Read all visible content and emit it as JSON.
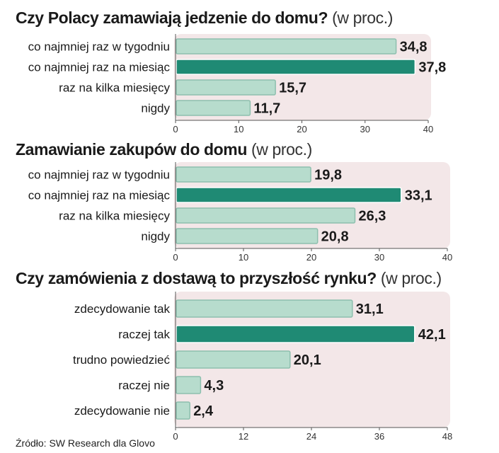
{
  "chart_data": [
    {
      "type": "bar",
      "orientation": "horizontal",
      "title": "Czy Polacy zamawiają jedzenie do domu?",
      "unit": "(w proc.)",
      "categories": [
        "co najmniej raz w tygodniu",
        "co najmniej raz na miesiąc",
        "raz na kilka miesięcy",
        "nigdy"
      ],
      "values": [
        34.8,
        37.8,
        15.7,
        11.7
      ],
      "value_labels": [
        "34,8",
        "37,8",
        "15,7",
        "11,7"
      ],
      "highlight_index": 1,
      "xlim": [
        0,
        40
      ],
      "ticks": [
        0,
        10,
        20,
        30,
        40
      ]
    },
    {
      "type": "bar",
      "orientation": "horizontal",
      "title": "Zamawianie zakupów do domu",
      "unit": "(w proc.)",
      "categories": [
        "co najmniej raz w tygodniu",
        "co najmniej raz na miesiąc",
        "raz na kilka miesięcy",
        "nigdy"
      ],
      "values": [
        19.8,
        33.1,
        26.3,
        20.8
      ],
      "value_labels": [
        "19,8",
        "33,1",
        "26,3",
        "20,8"
      ],
      "highlight_index": 1,
      "xlim": [
        0,
        40
      ],
      "ticks": [
        0,
        10,
        20,
        30,
        40
      ]
    },
    {
      "type": "bar",
      "orientation": "horizontal",
      "title": "Czy zamówienia z dostawą to przyszłość rynku?",
      "unit": "(w proc.)",
      "categories": [
        "zdecydowanie tak",
        "raczej tak",
        "trudno powiedzieć",
        "raczej nie",
        "zdecydowanie nie"
      ],
      "values": [
        31.1,
        42.1,
        20.1,
        4.3,
        2.4
      ],
      "value_labels": [
        "31,1",
        "42,1",
        "20,1",
        "4,3",
        "2,4"
      ],
      "highlight_index": 1,
      "xlim": [
        0,
        48
      ],
      "ticks": [
        0,
        12,
        24,
        36,
        48
      ]
    }
  ],
  "colors": {
    "bar": "#b7dccd",
    "bar_highlight": "#1f8a74",
    "bar_stroke": "#8dbfae",
    "panel_background": "#f3e7e8",
    "axis": "#555555"
  },
  "source": "Źródło: SW Research dla Glovo"
}
